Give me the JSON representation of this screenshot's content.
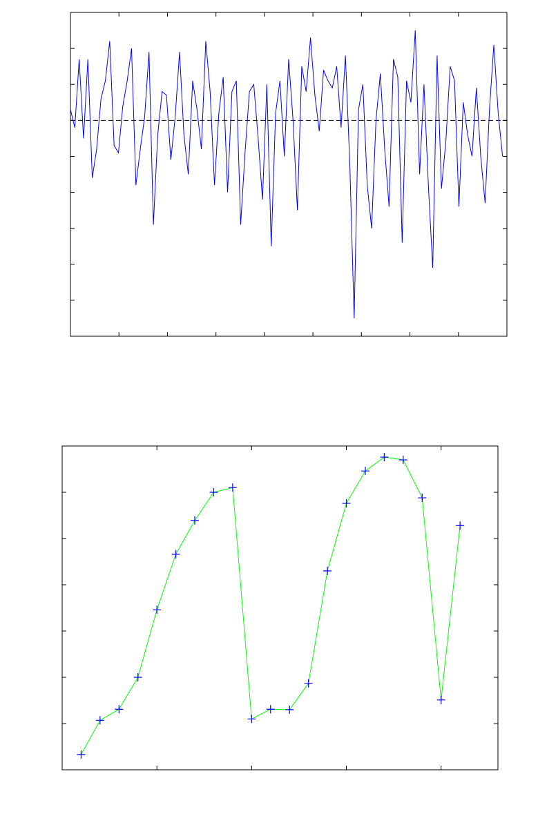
{
  "chart_data": [
    {
      "type": "line",
      "color": "#0000ff",
      "x": [
        0,
        9,
        18,
        27,
        36,
        45,
        54,
        63,
        72,
        81,
        90,
        99,
        108,
        117,
        126,
        135,
        144,
        153,
        162,
        171,
        180,
        189,
        198,
        207,
        216,
        225,
        234,
        243,
        252,
        261,
        270,
        279,
        288,
        297,
        306,
        315,
        324,
        333,
        342,
        351,
        360,
        369,
        378,
        387,
        396,
        405,
        414,
        423,
        432,
        441,
        450,
        459,
        468,
        477,
        486,
        495,
        504,
        513,
        522,
        531,
        540,
        549,
        558,
        567,
        576,
        585,
        594,
        603,
        612,
        621,
        630,
        639,
        648,
        657,
        666,
        675,
        684,
        693,
        702,
        711,
        720,
        729,
        738,
        747,
        756,
        765,
        774,
        783,
        792,
        801,
        810,
        819,
        828,
        837,
        846,
        855,
        864,
        873,
        882,
        891
      ],
      "values": [
        0.3,
        -0.2,
        1.7,
        -0.5,
        1.7,
        -1.6,
        -0.8,
        0.6,
        1.1,
        2.2,
        -0.7,
        -0.9,
        0.4,
        1.1,
        2.0,
        -1.8,
        -0.8,
        0.1,
        1.9,
        -2.9,
        -0.4,
        0.8,
        0.7,
        -1.1,
        0.1,
        1.9,
        -0.4,
        -1.5,
        1.1,
        0.3,
        -0.8,
        2.2,
        0.8,
        -1.8,
        0.2,
        1.2,
        -2.0,
        0.8,
        1.1,
        -2.9,
        -0.9,
        0.8,
        1.0,
        -0.5,
        -2.2,
        1.0,
        -3.5,
        0.2,
        1.1,
        -1.0,
        1.7,
        0.0,
        -2.5,
        1.5,
        0.8,
        2.3,
        0.7,
        -0.3,
        1.4,
        1.1,
        0.9,
        1.5,
        -0.2,
        1.8,
        -1.2,
        -5.5,
        0.3,
        1.0,
        -1.8,
        -3.0,
        0.0,
        1.3,
        -0.8,
        -2.4,
        1.7,
        1.2,
        -3.4,
        1.1,
        0.5,
        2.5,
        -1.5,
        1.0,
        -1.8,
        -4.1,
        1.8,
        -1.9,
        -0.6,
        1.5,
        1.1,
        -2.4,
        0.5,
        -0.4,
        -1.0,
        0.9,
        -1.0,
        -2.3,
        0.3,
        2.1,
        0.2,
        -1.0
      ],
      "hline": 0,
      "hline_color": "#000000",
      "xlim": [
        0,
        900
      ],
      "xticks": [
        100,
        200,
        300,
        400,
        500,
        600,
        700,
        800
      ],
      "ylim": [
        -6,
        3
      ],
      "yticks": [
        -5,
        -4,
        -3,
        -2,
        -1,
        0,
        1,
        2
      ]
    },
    {
      "type": "line",
      "color": "#00ff00",
      "marker_color": "#0000ff",
      "x": [
        1,
        2,
        3,
        4,
        5,
        6,
        7,
        8,
        9,
        10,
        11,
        12,
        13,
        14,
        15,
        16,
        17,
        18,
        19,
        20,
        21
      ],
      "values": [
        0.33,
        1.07,
        1.31,
        2.0,
        3.46,
        4.66,
        5.39,
        6.0,
        6.1,
        1.1,
        1.31,
        1.3,
        1.87,
        4.3,
        5.76,
        6.46,
        6.76,
        6.7,
        5.88,
        1.51,
        5.28
      ],
      "xlim": [
        0,
        23
      ],
      "xticks": [
        5,
        10,
        15,
        20
      ],
      "ylim": [
        0,
        7
      ],
      "yticks": [
        1,
        2,
        3,
        4,
        5,
        6
      ]
    }
  ]
}
